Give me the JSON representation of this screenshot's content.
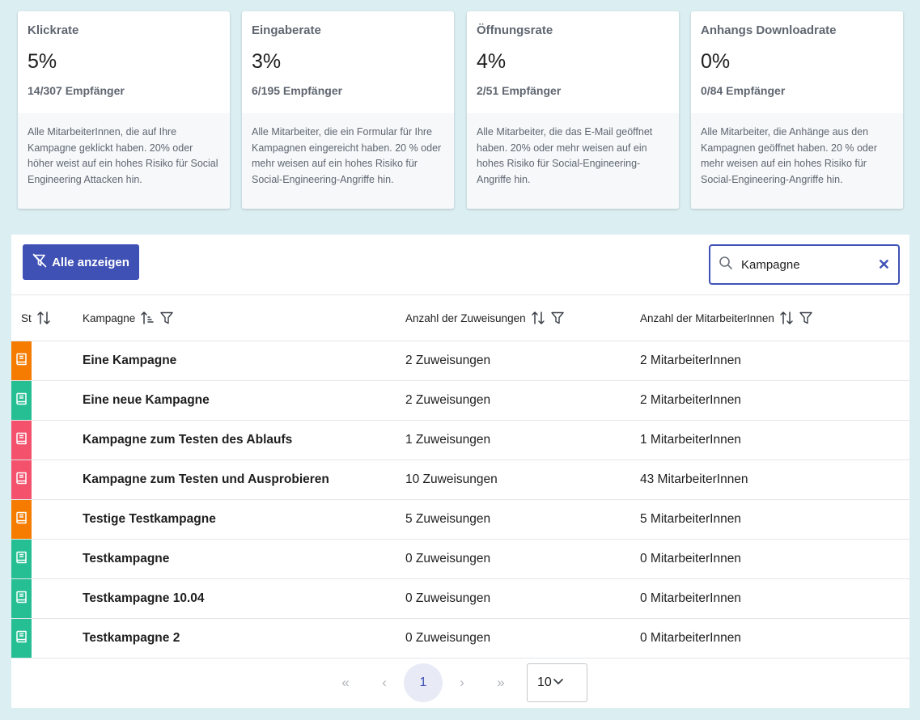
{
  "cards": [
    {
      "title": "Klickrate",
      "percent": "5%",
      "recipients": "14/307 Empfänger",
      "description": "Alle MitarbeiterInnen, die auf Ihre Kampagne geklickt haben. 20% oder höher weist auf ein hohes Risiko für Social Engineering Attacken hin."
    },
    {
      "title": "Eingaberate",
      "percent": "3%",
      "recipients": "6/195 Empfänger",
      "description": "Alle Mitarbeiter, die ein Formular für Ihre Kampagnen eingereicht haben. 20 % oder mehr weisen auf ein hohes Risiko für Social-Engineering-Angriffe hin."
    },
    {
      "title": "Öffnungsrate",
      "percent": "4%",
      "recipients": "2/51 Empfänger",
      "description": "Alle Mitarbeiter, die das E-Mail geöffnet haben. 20% oder mehr weisen auf ein hohes Risiko für Social-Engineering-Angriffe hin."
    },
    {
      "title": "Anhangs Downloadrate",
      "percent": "0%",
      "recipients": "0/84 Empfänger",
      "description": "Alle Mitarbeiter, die Anhänge aus den Kampagnen geöffnet haben. 20 % oder mehr weisen auf ein hohes Risiko für Social-Engineering-Angriffe hin."
    }
  ],
  "toolbar": {
    "show_all_label": "Alle anzeigen"
  },
  "search": {
    "value": "Kampagne"
  },
  "table": {
    "headers": {
      "status": "St",
      "campaign": "Kampagne",
      "assignments": "Anzahl der Zuweisungen",
      "employees": "Anzahl der MitarbeiterInnen"
    },
    "rows": [
      {
        "status_color": "#f57c00",
        "name": "Eine Kampagne",
        "assignments": "2 Zuweisungen",
        "employees": "2 MitarbeiterInnen"
      },
      {
        "status_color": "#26bf94",
        "name": "Eine neue Kampagne",
        "assignments": "2 Zuweisungen",
        "employees": "2 MitarbeiterInnen"
      },
      {
        "status_color": "#f4516c",
        "name": "Kampagne zum Testen des Ablaufs",
        "assignments": "1 Zuweisungen",
        "employees": "1 MitarbeiterInnen"
      },
      {
        "status_color": "#f4516c",
        "name": "Kampagne zum Testen und Ausprobieren",
        "assignments": "10 Zuweisungen",
        "employees": "43 MitarbeiterInnen"
      },
      {
        "status_color": "#f57c00",
        "name": "Testige Testkampagne",
        "assignments": "5 Zuweisungen",
        "employees": "5 MitarbeiterInnen"
      },
      {
        "status_color": "#26bf94",
        "name": "Testkampagne",
        "assignments": "0 Zuweisungen",
        "employees": "0 MitarbeiterInnen"
      },
      {
        "status_color": "#26bf94",
        "name": "Testkampagne 10.04",
        "assignments": "0 Zuweisungen",
        "employees": "0 MitarbeiterInnen"
      },
      {
        "status_color": "#26bf94",
        "name": "Testkampagne 2",
        "assignments": "0 Zuweisungen",
        "employees": "0 MitarbeiterInnen"
      }
    ]
  },
  "pagination": {
    "first": "«",
    "prev": "‹",
    "current": "1",
    "next": "›",
    "last": "»",
    "page_size": "10"
  },
  "colors": {
    "primary": "#3f51b5",
    "orange": "#f57c00",
    "green": "#26bf94",
    "red": "#f4516c"
  }
}
